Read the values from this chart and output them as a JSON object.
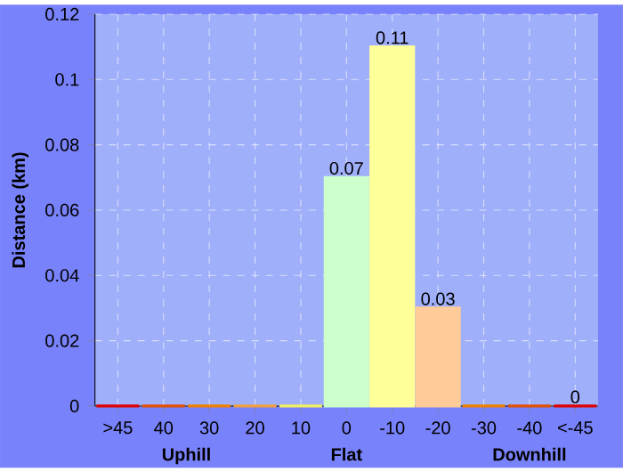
{
  "chart_data": {
    "type": "bar",
    "ylabel": "Distance (km)",
    "categories": [
      ">45",
      "40",
      "30",
      "20",
      "10",
      "0",
      "-10",
      "-20",
      "-30",
      "-40",
      "<-45"
    ],
    "values": [
      0,
      0,
      0,
      0,
      0,
      0.07,
      0.11,
      0.03,
      0,
      0,
      0
    ],
    "colors": [
      "#e00000",
      "#e05000",
      "#f08000",
      "#f0a040",
      "#f0f060",
      "#ccffcc",
      "#ffff99",
      "#ffcc99",
      "#f08000",
      "#e05000",
      "#e00000"
    ],
    "value_labels": [
      null,
      null,
      null,
      null,
      null,
      "0.07",
      "0.11",
      "0.03",
      null,
      null,
      "0"
    ],
    "ylim": [
      0,
      0.12
    ],
    "yticks": [
      0,
      0.02,
      0.04,
      0.06,
      0.08,
      0.1,
      0.12
    ],
    "grid": true,
    "annotations": [
      "Uphill",
      "Flat",
      "Downhill"
    ]
  }
}
